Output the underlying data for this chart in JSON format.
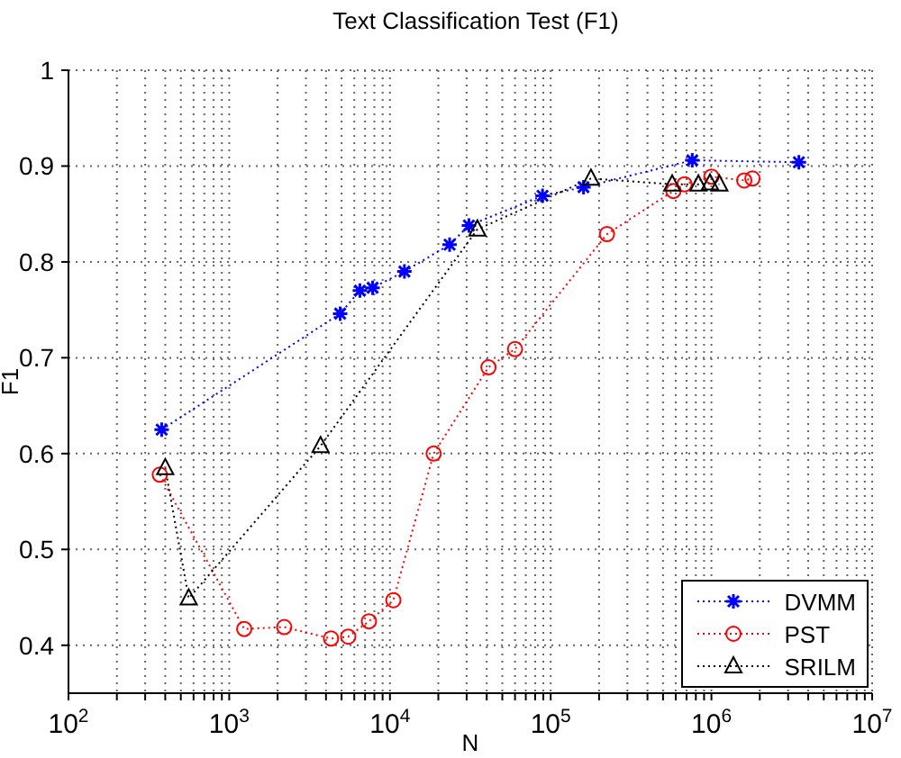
{
  "chart_data": {
    "type": "line",
    "title": "Text Classification Test (F1)",
    "xlabel": "N",
    "ylabel": "F1",
    "log": "x",
    "xlim": [
      100,
      10000000
    ],
    "xticks": [
      {
        "value": 100,
        "label": "10$^{2}$"
      },
      {
        "value": 200,
        "label": null
      },
      {
        "value": 300,
        "label": null
      },
      {
        "value": 400,
        "label": null
      },
      {
        "value": 500,
        "label": null
      },
      {
        "value": 600,
        "label": null
      },
      {
        "value": 700,
        "label": null
      },
      {
        "value": 800,
        "label": null
      },
      {
        "value": 900,
        "label": null
      },
      {
        "value": 1000,
        "label": "10$^{3}$"
      },
      {
        "value": 2000,
        "label": null
      },
      {
        "value": 3000,
        "label": null
      },
      {
        "value": 4000,
        "label": null
      },
      {
        "value": 5000,
        "label": null
      },
      {
        "value": 6000,
        "label": null
      },
      {
        "value": 7000,
        "label": null
      },
      {
        "value": 8000,
        "label": null
      },
      {
        "value": 9000,
        "label": null
      },
      {
        "value": 10000,
        "label": "10$^{4}$"
      },
      {
        "value": 20000,
        "label": null
      },
      {
        "value": 30000,
        "label": null
      },
      {
        "value": 40000,
        "label": null
      },
      {
        "value": 50000,
        "label": null
      },
      {
        "value": 60000,
        "label": null
      },
      {
        "value": 70000,
        "label": null
      },
      {
        "value": 80000,
        "label": null
      },
      {
        "value": 90000,
        "label": null
      },
      {
        "value": 100000,
        "label": "10$^{5}$"
      },
      {
        "value": 200000,
        "label": null
      },
      {
        "value": 300000,
        "label": null
      },
      {
        "value": 400000,
        "label": null
      },
      {
        "value": 500000,
        "label": null
      },
      {
        "value": 600000,
        "label": null
      },
      {
        "value": 700000,
        "label": null
      },
      {
        "value": 800000,
        "label": null
      },
      {
        "value": 900000,
        "label": null
      },
      {
        "value": 1000000,
        "label": "10$^{6}$"
      },
      {
        "value": 2000000,
        "label": null
      },
      {
        "value": 3000000,
        "label": null
      },
      {
        "value": 4000000,
        "label": null
      },
      {
        "value": 5000000,
        "label": null
      },
      {
        "value": 6000000,
        "label": null
      },
      {
        "value": 7000000,
        "label": null
      },
      {
        "value": 8000000,
        "label": null
      },
      {
        "value": 9000000,
        "label": null
      },
      {
        "value": 10000000,
        "label": "10$^{7}$"
      }
    ],
    "ylim": [
      0.35,
      1
    ],
    "yticks": [
      0.4,
      0.5,
      0.6,
      0.7,
      0.8,
      0.9,
      1
    ],
    "grid": true,
    "legend": "bottom right",
    "line_style": "dotted",
    "series": [
      {
        "name": "DVMM",
        "color": "#0000ff",
        "marker": "cross",
        "x": [
          380,
          4900,
          6500,
          7800,
          12300,
          23500,
          31000,
          89000,
          160000,
          760000,
          3500000
        ],
        "values": [
          0.625,
          0.746,
          0.77,
          0.773,
          0.79,
          0.818,
          0.838,
          0.869,
          0.878,
          0.906,
          0.904
        ]
      },
      {
        "name": "PST",
        "color": "#ff0000",
        "marker": "circle",
        "x": [
          370,
          1240,
          2200,
          4300,
          5500,
          7400,
          10500,
          18700,
          41000,
          60000,
          224000,
          580000,
          680000,
          1000000,
          1600000,
          1800000
        ],
        "values": [
          0.578,
          0.417,
          0.419,
          0.407,
          0.409,
          0.425,
          0.447,
          0.6,
          0.69,
          0.709,
          0.829,
          0.874,
          0.881,
          0.889,
          0.885,
          0.887
        ]
      },
      {
        "name": "SRILM",
        "color": "#000000",
        "marker": "triangle",
        "x": [
          400,
          560,
          3700,
          35000,
          178000,
          570000,
          830000,
          980000,
          1120000
        ],
        "values": [
          0.585,
          0.449,
          0.608,
          0.834,
          0.887,
          0.881,
          0.881,
          0.882,
          0.881
        ]
      }
    ]
  }
}
